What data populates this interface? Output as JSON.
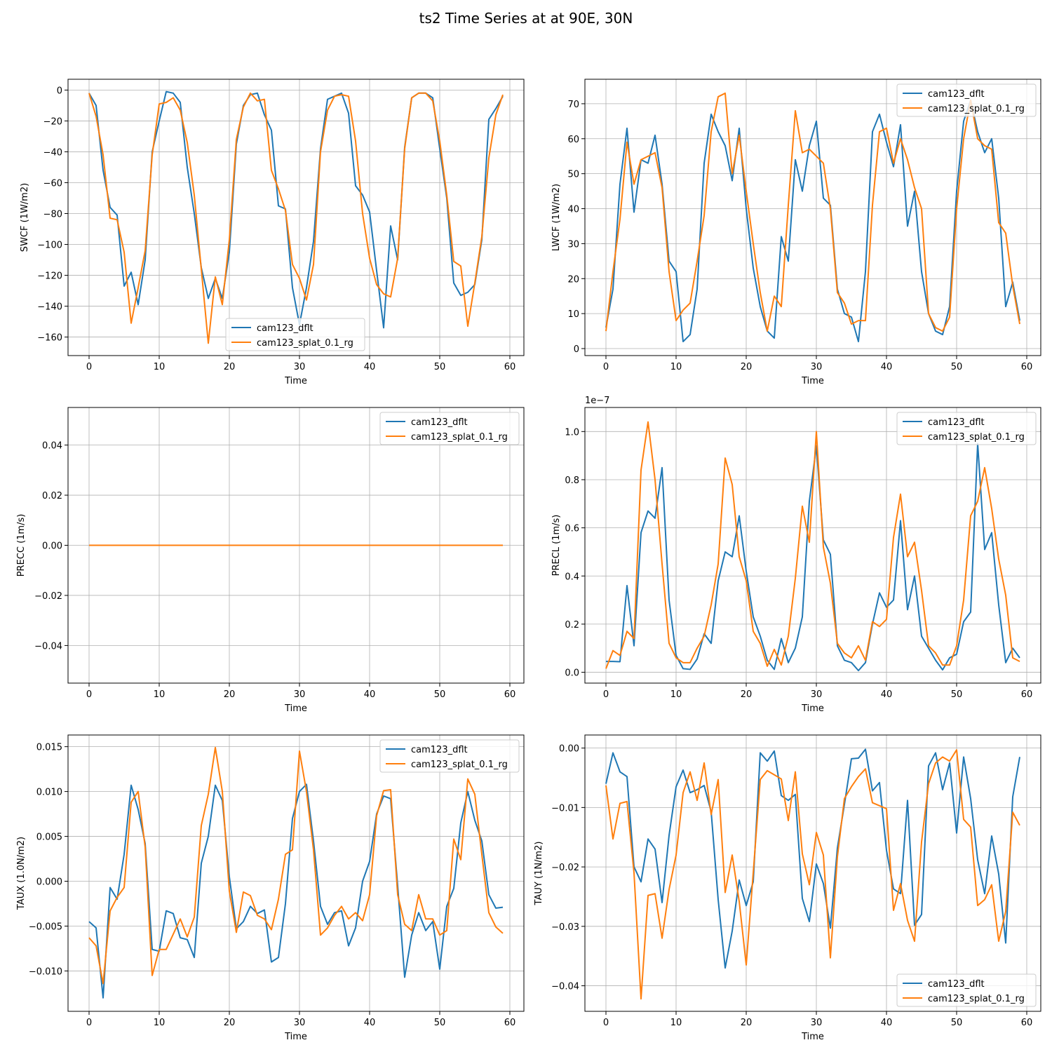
{
  "figure": {
    "title": "ts2 Time Series at at 90E, 30N"
  },
  "colors": {
    "cam123_dflt": "#1f77b4",
    "cam123_splat_0.1_rg": "#ff7f0e",
    "grid": "#b0b0b0"
  },
  "chart_data": [
    {
      "type": "line",
      "xlabel": "Time",
      "ylabel": "SWCF (1W/m2)",
      "xlim": [
        -3,
        62
      ],
      "ylim": [
        -172,
        7
      ],
      "xticks": [
        0,
        10,
        20,
        30,
        40,
        50,
        60
      ],
      "yticks": [
        0,
        -20,
        -40,
        -60,
        -80,
        -100,
        -120,
        -140,
        -160
      ],
      "ytick_labels": [
        "0",
        "−20",
        "−40",
        "−60",
        "−80",
        "−100",
        "−120",
        "−140",
        "−160"
      ],
      "offset_text": "",
      "legend": "lower-center",
      "grid": true,
      "series": [
        {
          "name": "cam123_dflt",
          "values": [
            -2,
            -10,
            -52,
            -76,
            -81,
            -127,
            -118,
            -139,
            -110,
            -40,
            -20,
            -1,
            -2,
            -8,
            -50,
            -80,
            -115,
            -135,
            -122,
            -135,
            -105,
            -35,
            -10,
            -3,
            -2,
            -16,
            -26,
            -75,
            -77,
            -128,
            -152,
            -128,
            -98,
            -38,
            -6,
            -4,
            -2,
            -15,
            -62,
            -68,
            -79,
            -117,
            -154,
            -88,
            -110,
            -37,
            -5,
            -2,
            -2,
            -5,
            -38,
            -70,
            -125,
            -133,
            -131,
            -126,
            -97,
            -19,
            -12,
            -4
          ]
        },
        {
          "name": "cam123_splat_0.1_rg",
          "values": [
            -2,
            -17,
            -42,
            -83,
            -84,
            -105,
            -151,
            -128,
            -104,
            -42,
            -9,
            -8,
            -5,
            -13,
            -34,
            -68,
            -116,
            -164,
            -121,
            -139,
            -97,
            -32,
            -11,
            -2,
            -7,
            -6,
            -52,
            -64,
            -78,
            -113,
            -122,
            -136,
            -113,
            -40,
            -13,
            -4,
            -3,
            -4,
            -33,
            -80,
            -109,
            -126,
            -132,
            -134,
            -109,
            -38,
            -5,
            -2,
            -2,
            -7,
            -33,
            -68,
            -111,
            -114,
            -153,
            -125,
            -95,
            -44,
            -16,
            -3
          ]
        }
      ]
    },
    {
      "type": "line",
      "xlabel": "Time",
      "ylabel": "LWCF (1W/m2)",
      "xlim": [
        -3,
        62
      ],
      "ylim": [
        -2,
        77
      ],
      "xticks": [
        0,
        10,
        20,
        30,
        40,
        50,
        60
      ],
      "yticks": [
        0,
        10,
        20,
        30,
        40,
        50,
        60,
        70
      ],
      "ytick_labels": [
        "0",
        "10",
        "20",
        "30",
        "40",
        "50",
        "60",
        "70"
      ],
      "offset_text": "",
      "legend": "top-right",
      "grid": true,
      "series": [
        {
          "name": "cam123_dflt",
          "values": [
            6,
            17,
            47,
            63,
            39,
            54,
            53,
            61,
            47,
            25,
            22,
            2,
            4,
            17,
            53,
            67,
            62,
            58,
            48,
            63,
            40,
            23,
            12,
            5,
            3,
            32,
            25,
            54,
            45,
            58,
            65,
            43,
            41,
            17,
            10,
            9,
            2,
            22,
            62,
            67,
            59,
            52,
            64,
            35,
            45,
            22,
            10,
            5,
            4,
            12,
            45,
            65,
            71,
            62,
            56,
            60,
            43,
            12,
            19,
            8
          ]
        },
        {
          "name": "cam123_splat_0.1_rg",
          "values": [
            5,
            22,
            37,
            59,
            47,
            54,
            55,
            56,
            46,
            22,
            8,
            11,
            13,
            25,
            38,
            62,
            72,
            73,
            50,
            61,
            45,
            30,
            16,
            5,
            15,
            12,
            41,
            68,
            56,
            57,
            55,
            53,
            40,
            16,
            13,
            7,
            8,
            8,
            41,
            62,
            63,
            53,
            60,
            54,
            46,
            40,
            10,
            6,
            5,
            9,
            40,
            60,
            71,
            60,
            58,
            57,
            36,
            33,
            18,
            7
          ]
        }
      ]
    },
    {
      "type": "line",
      "xlabel": "Time",
      "ylabel": "PRECC (1m/s)",
      "xlim": [
        -3,
        62
      ],
      "ylim": [
        -0.055,
        0.055
      ],
      "xticks": [
        0,
        10,
        20,
        30,
        40,
        50,
        60
      ],
      "yticks": [
        0.04,
        0.02,
        0.0,
        -0.02,
        -0.04
      ],
      "ytick_labels": [
        "0.04",
        "0.02",
        "0.00",
        "−0.02",
        "−0.04"
      ],
      "offset_text": "",
      "legend": "top-right",
      "grid": true,
      "series": [
        {
          "name": "cam123_dflt",
          "values": [
            0,
            0,
            0,
            0,
            0,
            0,
            0,
            0,
            0,
            0,
            0,
            0,
            0,
            0,
            0,
            0,
            0,
            0,
            0,
            0,
            0,
            0,
            0,
            0,
            0,
            0,
            0,
            0,
            0,
            0,
            0,
            0,
            0,
            0,
            0,
            0,
            0,
            0,
            0,
            0,
            0,
            0,
            0,
            0,
            0,
            0,
            0,
            0,
            0,
            0,
            0,
            0,
            0,
            0,
            0,
            0,
            0,
            0,
            0,
            0
          ]
        },
        {
          "name": "cam123_splat_0.1_rg",
          "values": [
            0,
            0,
            0,
            0,
            0,
            0,
            0,
            0,
            0,
            0,
            0,
            0,
            0,
            0,
            0,
            0,
            0,
            0,
            0,
            0,
            0,
            0,
            0,
            0,
            0,
            0,
            0,
            0,
            0,
            0,
            0,
            0,
            0,
            0,
            0,
            0,
            0,
            0,
            0,
            0,
            0,
            0,
            0,
            0,
            0,
            0,
            0,
            0,
            0,
            0,
            0,
            0,
            0,
            0,
            0,
            0,
            0,
            0,
            0,
            0
          ]
        }
      ]
    },
    {
      "type": "line",
      "xlabel": "Time",
      "ylabel": "PRECL (1m/s)",
      "xlim": [
        -3,
        62
      ],
      "ylim": [
        -0.045,
        1.1
      ],
      "xticks": [
        0,
        10,
        20,
        30,
        40,
        50,
        60
      ],
      "yticks": [
        0.0,
        0.2,
        0.4,
        0.6,
        0.8,
        1.0
      ],
      "ytick_labels": [
        "0.0",
        "0.2",
        "0.4",
        "0.6",
        "0.8",
        "1.0"
      ],
      "offset_text": "1e−7",
      "legend": "top-right",
      "grid": true,
      "series": [
        {
          "name": "cam123_dflt",
          "values": [
            0.045,
            0.045,
            0.044,
            0.36,
            0.11,
            0.58,
            0.67,
            0.64,
            0.85,
            0.3,
            0.07,
            0.015,
            0.012,
            0.055,
            0.16,
            0.12,
            0.38,
            0.5,
            0.48,
            0.65,
            0.42,
            0.23,
            0.15,
            0.05,
            0.012,
            0.14,
            0.04,
            0.1,
            0.23,
            0.71,
            0.94,
            0.55,
            0.49,
            0.11,
            0.05,
            0.04,
            0.007,
            0.04,
            0.2,
            0.33,
            0.27,
            0.3,
            0.63,
            0.26,
            0.4,
            0.15,
            0.1,
            0.05,
            0.01,
            0.06,
            0.075,
            0.21,
            0.25,
            0.95,
            0.51,
            0.58,
            0.28,
            0.04,
            0.1,
            0.06
          ]
        },
        {
          "name": "cam123_splat_0.1_rg",
          "values": [
            0.015,
            0.09,
            0.07,
            0.17,
            0.14,
            0.84,
            1.04,
            0.8,
            0.45,
            0.12,
            0.06,
            0.04,
            0.04,
            0.1,
            0.15,
            0.28,
            0.45,
            0.89,
            0.78,
            0.48,
            0.38,
            0.17,
            0.12,
            0.025,
            0.095,
            0.03,
            0.15,
            0.39,
            0.69,
            0.54,
            1.0,
            0.52,
            0.37,
            0.12,
            0.08,
            0.06,
            0.11,
            0.05,
            0.21,
            0.19,
            0.22,
            0.56,
            0.74,
            0.48,
            0.54,
            0.34,
            0.11,
            0.08,
            0.03,
            0.03,
            0.11,
            0.3,
            0.65,
            0.71,
            0.85,
            0.68,
            0.47,
            0.32,
            0.06,
            0.045
          ]
        }
      ]
    },
    {
      "type": "line",
      "xlabel": "Time",
      "ylabel": "TAUX (1.0N/m2)",
      "xlim": [
        -3,
        62
      ],
      "ylim": [
        -0.0145,
        0.0163
      ],
      "xticks": [
        0,
        10,
        20,
        30,
        40,
        50,
        60
      ],
      "yticks": [
        0.015,
        0.01,
        0.005,
        0.0,
        -0.005,
        -0.01
      ],
      "ytick_labels": [
        "0.015",
        "0.010",
        "0.005",
        "0.000",
        "−0.005",
        "−0.010"
      ],
      "offset_text": "",
      "legend": "top-right",
      "grid": true,
      "series": [
        {
          "name": "cam123_dflt",
          "values": [
            -0.0045,
            -0.0052,
            -0.013,
            -0.0007,
            -0.002,
            0.003,
            0.0107,
            0.008,
            0.0042,
            -0.0076,
            -0.0078,
            -0.0033,
            -0.0036,
            -0.0063,
            -0.0065,
            -0.0085,
            0.002,
            0.005,
            0.0107,
            0.009,
            0.0005,
            -0.0053,
            -0.0045,
            -0.0028,
            -0.0036,
            -0.0032,
            -0.009,
            -0.0085,
            -0.0025,
            0.007,
            0.01,
            0.0108,
            0.0045,
            -0.0028,
            -0.0048,
            -0.0035,
            -0.0033,
            -0.0072,
            -0.0052,
            0.0,
            0.0022,
            0.0075,
            0.0095,
            0.0092,
            -0.0005,
            -0.0107,
            -0.006,
            -0.0035,
            -0.0055,
            -0.0045,
            -0.0098,
            -0.0028,
            -0.0008,
            0.0065,
            0.01,
            0.0068,
            0.0045,
            -0.0015,
            -0.003,
            -0.0029
          ]
        },
        {
          "name": "cam123_splat_0.1_rg",
          "values": [
            -0.0063,
            -0.0072,
            -0.0114,
            -0.0033,
            -0.0018,
            -0.0007,
            0.0088,
            0.01,
            0.0038,
            -0.0105,
            -0.0076,
            -0.0076,
            -0.0059,
            -0.0042,
            -0.0062,
            -0.004,
            0.0062,
            0.0097,
            0.0149,
            0.01,
            -0.0011,
            -0.0057,
            -0.0012,
            -0.0016,
            -0.0038,
            -0.0042,
            -0.0054,
            -0.002,
            0.003,
            0.0035,
            0.0145,
            0.01,
            0.0035,
            -0.006,
            -0.0052,
            -0.0038,
            -0.0028,
            -0.0042,
            -0.0035,
            -0.0044,
            -0.0015,
            0.0073,
            0.0101,
            0.0102,
            -0.0015,
            -0.0048,
            -0.0055,
            -0.0015,
            -0.0042,
            -0.0042,
            -0.006,
            -0.0055,
            0.0047,
            0.0024,
            0.0114,
            0.0097,
            0.003,
            -0.0035,
            -0.0051,
            -0.0058
          ]
        }
      ]
    },
    {
      "type": "line",
      "xlabel": "Time",
      "ylabel": "TAUY (1N/m2)",
      "xlim": [
        -3,
        62
      ],
      "ylim": [
        -0.0443,
        0.0022
      ],
      "xticks": [
        0,
        10,
        20,
        30,
        40,
        50,
        60
      ],
      "yticks": [
        0.0,
        -0.01,
        -0.02,
        -0.03,
        -0.04
      ],
      "ytick_labels": [
        "0.00",
        "−0.01",
        "−0.02",
        "−0.03",
        "−0.04"
      ],
      "offset_text": "",
      "legend": "bottom-right",
      "grid": true,
      "series": [
        {
          "name": "cam123_dflt",
          "values": [
            -0.006,
            -0.0008,
            -0.004,
            -0.0048,
            -0.02,
            -0.0225,
            -0.0153,
            -0.017,
            -0.026,
            -0.0147,
            -0.0065,
            -0.0037,
            -0.0075,
            -0.007,
            -0.0063,
            -0.0107,
            -0.0255,
            -0.037,
            -0.0308,
            -0.0222,
            -0.0265,
            -0.0225,
            -0.0008,
            -0.0022,
            -0.0005,
            -0.008,
            -0.0088,
            -0.0078,
            -0.0253,
            -0.0292,
            -0.0195,
            -0.0228,
            -0.0303,
            -0.0168,
            -0.0095,
            -0.0018,
            -0.0017,
            -0.0002,
            -0.0072,
            -0.0058,
            -0.0172,
            -0.0237,
            -0.0245,
            -0.0088,
            -0.0298,
            -0.028,
            -0.003,
            -0.0008,
            -0.007,
            -0.0025,
            -0.0143,
            -0.0015,
            -0.0085,
            -0.0188,
            -0.0245,
            -0.0148,
            -0.0212,
            -0.0328,
            -0.0082,
            -0.0015
          ]
        },
        {
          "name": "cam123_splat_0.1_rg",
          "values": [
            -0.0063,
            -0.0153,
            -0.0093,
            -0.009,
            -0.021,
            -0.0422,
            -0.0248,
            -0.0245,
            -0.032,
            -0.0238,
            -0.018,
            -0.0075,
            -0.004,
            -0.0088,
            -0.0025,
            -0.0112,
            -0.0053,
            -0.0243,
            -0.018,
            -0.0258,
            -0.0365,
            -0.021,
            -0.0053,
            -0.0038,
            -0.0045,
            -0.0052,
            -0.0122,
            -0.004,
            -0.0178,
            -0.023,
            -0.0142,
            -0.018,
            -0.0353,
            -0.0183,
            -0.0085,
            -0.0065,
            -0.0048,
            -0.0035,
            -0.0092,
            -0.0097,
            -0.0102,
            -0.0273,
            -0.0228,
            -0.029,
            -0.0325,
            -0.0158,
            -0.006,
            -0.0025,
            -0.0015,
            -0.0022,
            -0.0003,
            -0.012,
            -0.0133,
            -0.0265,
            -0.0255,
            -0.023,
            -0.0325,
            -0.0275,
            -0.0108,
            -0.013
          ]
        }
      ]
    }
  ]
}
